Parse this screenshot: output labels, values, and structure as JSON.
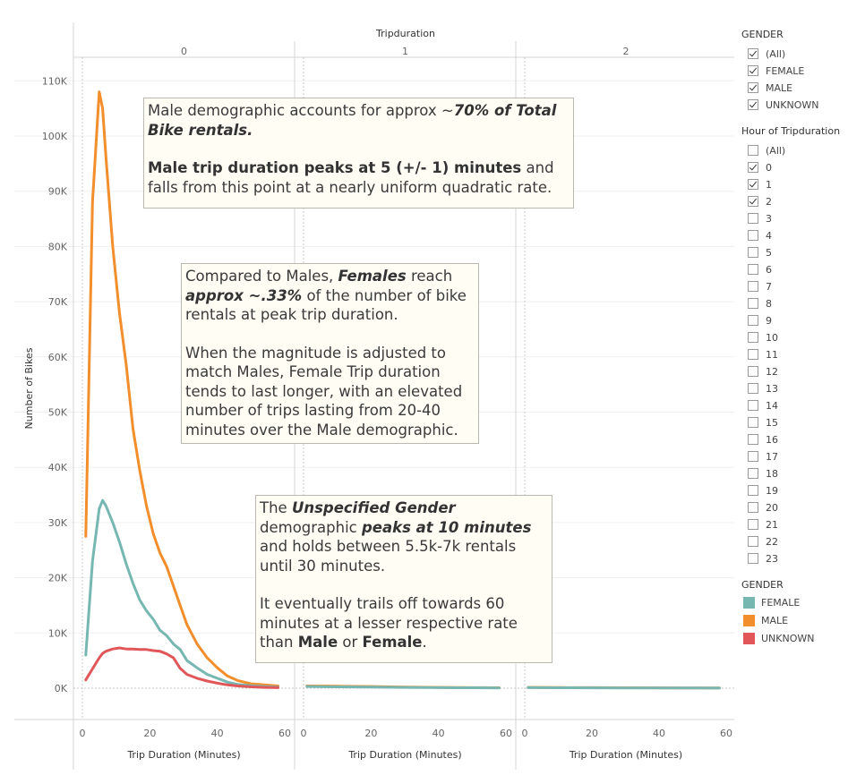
{
  "chart_data": {
    "type": "line",
    "title": "",
    "column_header": "Tripduration",
    "panels": [
      "0",
      "1",
      "2"
    ],
    "xlabel": "Trip Duration (Minutes)",
    "ylabel": "Number of Bikes",
    "xlim": [
      0,
      60
    ],
    "ylim": [
      -5000,
      115000
    ],
    "x_ticks": [
      0,
      20,
      40,
      60
    ],
    "y_ticks": [
      0,
      10000,
      20000,
      30000,
      40000,
      50000,
      60000,
      70000,
      80000,
      90000,
      100000,
      110000
    ],
    "y_tick_labels": [
      "0K",
      "10K",
      "20K",
      "30K",
      "40K",
      "50K",
      "60K",
      "70K",
      "80K",
      "90K",
      "100K",
      "110K"
    ],
    "x": [
      1,
      3,
      5,
      6,
      7,
      9,
      11,
      13,
      15,
      17,
      19,
      21,
      23,
      25,
      27,
      29,
      31,
      34,
      37,
      40,
      43,
      46,
      50,
      54,
      58
    ],
    "series": [
      {
        "name": "MALE",
        "color": "#f28e2b",
        "panel": "0",
        "values": [
          27500,
          88000,
          108000,
          105000,
          96000,
          80000,
          68000,
          58500,
          47000,
          39500,
          33000,
          28000,
          24500,
          22000,
          18500,
          15000,
          11500,
          8000,
          5500,
          3700,
          2200,
          1400,
          800,
          600,
          400
        ]
      },
      {
        "name": "FEMALE",
        "color": "#76b7b2",
        "panel": "0",
        "values": [
          6000,
          23000,
          32500,
          34000,
          33000,
          30000,
          26500,
          22500,
          19000,
          16000,
          14000,
          12500,
          10500,
          9500,
          8000,
          7000,
          5000,
          3700,
          2500,
          1800,
          1100,
          700,
          450,
          300,
          200
        ]
      },
      {
        "name": "UNKNOWN",
        "color": "#e15759",
        "panel": "0",
        "values": [
          1500,
          3500,
          5500,
          6300,
          6700,
          7100,
          7300,
          7100,
          7100,
          7000,
          7000,
          6800,
          6700,
          6200,
          5500,
          3600,
          2500,
          1800,
          1300,
          900,
          600,
          400,
          250,
          150,
          100
        ]
      },
      {
        "name": "MALE",
        "color": "#f28e2b",
        "panel": "1",
        "x": [
          1,
          10,
          20,
          30,
          40,
          50,
          58
        ],
        "values": [
          400,
          350,
          300,
          200,
          150,
          100,
          80
        ]
      },
      {
        "name": "FEMALE",
        "color": "#76b7b2",
        "panel": "1",
        "x": [
          1,
          10,
          20,
          30,
          40,
          50,
          58
        ],
        "values": [
          300,
          250,
          200,
          150,
          100,
          80,
          50
        ]
      },
      {
        "name": "MALE",
        "color": "#f28e2b",
        "panel": "2",
        "x": [
          1,
          10,
          20,
          30,
          40,
          50,
          58
        ],
        "values": [
          150,
          120,
          100,
          80,
          60,
          40,
          30
        ]
      },
      {
        "name": "FEMALE",
        "color": "#76b7b2",
        "panel": "2",
        "x": [
          1,
          10,
          20,
          30,
          40,
          50,
          58
        ],
        "values": [
          100,
          80,
          60,
          50,
          40,
          30,
          20
        ]
      }
    ]
  },
  "annotations": {
    "male": {
      "p1_a": "Male demographic accounts for approx ~",
      "p1_b": "70% of ",
      "p1_c": "Total Bike rentals",
      "p1_d": ".",
      "p2_a": "Male trip duration peaks at 5 (+/- 1) minutes",
      "p2_b": " and falls from this point at a nearly uniform quadratic rate."
    },
    "female": {
      "p1_a": "Compared to Males, ",
      "p1_b": "Females",
      "p1_c": " reach ",
      "p1_d": "approx ~.33%",
      "p1_e": " of the number of bike rentals at peak trip duration.",
      "p2": "When the magnitude is adjusted to match Males, Female Trip duration tends to last longer, with an elevated number of trips lasting from 20-40 minutes over the Male demographic."
    },
    "unknown": {
      "p1_a": "The ",
      "p1_b": "Unspecified Gender",
      "p1_c": " demographic ",
      "p1_d": "peaks at 10 minutes",
      "p1_e": " and holds between 5.5k-7k rentals until 30 minutes.",
      "p2_a": "It eventually trails off towards 60 minutes at a lesser respective rate than ",
      "p2_b": "Male",
      "p2_c": " or ",
      "p2_d": "Female",
      "p2_e": "."
    }
  },
  "filters": {
    "gender": {
      "title": "GENDER",
      "items": [
        {
          "label": "(All)",
          "checked": true
        },
        {
          "label": "FEMALE",
          "checked": true
        },
        {
          "label": "MALE",
          "checked": true
        },
        {
          "label": "UNKNOWN",
          "checked": true
        }
      ]
    },
    "hour": {
      "title": "Hour of Tripduration",
      "items": [
        {
          "label": "(All)",
          "checked": false
        },
        {
          "label": "0",
          "checked": true
        },
        {
          "label": "1",
          "checked": true
        },
        {
          "label": "2",
          "checked": true
        },
        {
          "label": "3",
          "checked": false
        },
        {
          "label": "4",
          "checked": false
        },
        {
          "label": "5",
          "checked": false
        },
        {
          "label": "6",
          "checked": false
        },
        {
          "label": "7",
          "checked": false
        },
        {
          "label": "8",
          "checked": false
        },
        {
          "label": "9",
          "checked": false
        },
        {
          "label": "10",
          "checked": false
        },
        {
          "label": "11",
          "checked": false
        },
        {
          "label": "12",
          "checked": false
        },
        {
          "label": "13",
          "checked": false
        },
        {
          "label": "14",
          "checked": false
        },
        {
          "label": "15",
          "checked": false
        },
        {
          "label": "16",
          "checked": false
        },
        {
          "label": "17",
          "checked": false
        },
        {
          "label": "18",
          "checked": false
        },
        {
          "label": "19",
          "checked": false
        },
        {
          "label": "20",
          "checked": false
        },
        {
          "label": "21",
          "checked": false
        },
        {
          "label": "22",
          "checked": false
        },
        {
          "label": "23",
          "checked": false
        }
      ]
    }
  },
  "color_legend": {
    "title": "GENDER",
    "items": [
      {
        "label": "FEMALE",
        "color": "#76b7b2"
      },
      {
        "label": "MALE",
        "color": "#f28e2b"
      },
      {
        "label": "UNKNOWN",
        "color": "#e15759"
      }
    ]
  }
}
